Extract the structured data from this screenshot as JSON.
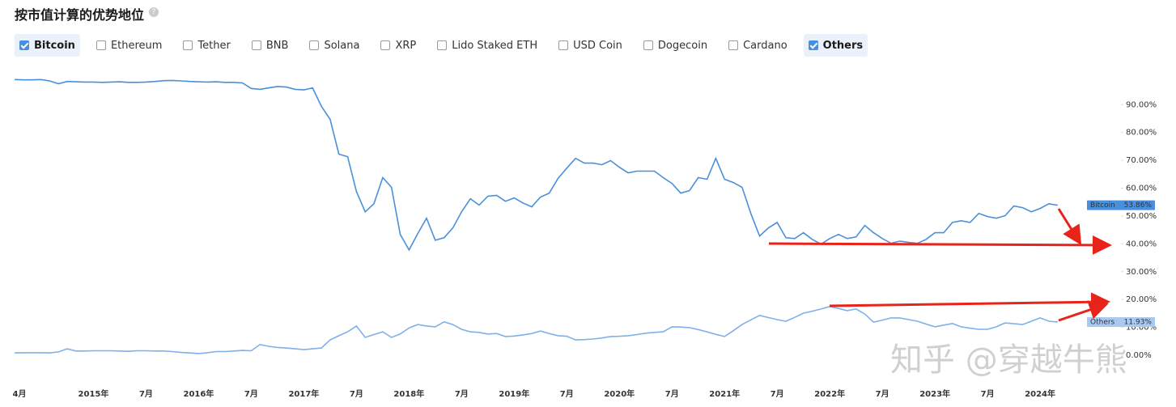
{
  "chart_data": {
    "type": "line",
    "title": "按市值计算的优势地位",
    "legend": [
      {
        "name": "Bitcoin",
        "checked": true
      },
      {
        "name": "Ethereum",
        "checked": false
      },
      {
        "name": "Tether",
        "checked": false
      },
      {
        "name": "BNB",
        "checked": false
      },
      {
        "name": "Solana",
        "checked": false
      },
      {
        "name": "XRP",
        "checked": false
      },
      {
        "name": "Lido Staked ETH",
        "checked": false
      },
      {
        "name": "USD Coin",
        "checked": false
      },
      {
        "name": "Dogecoin",
        "checked": false
      },
      {
        "name": "Cardano",
        "checked": false
      },
      {
        "name": "Others",
        "checked": true
      }
    ],
    "watermark": "知乎 @穿越牛熊",
    "categories": [
      "4月",
      null,
      null,
      null,
      null,
      null,
      null,
      null,
      null,
      "2015年",
      null,
      null,
      null,
      null,
      null,
      "7月",
      null,
      null,
      null,
      null,
      null,
      "2016年",
      null,
      null,
      null,
      null,
      null,
      "7月",
      null,
      null,
      null,
      null,
      null,
      "2017年",
      null,
      null,
      null,
      null,
      null,
      "7月",
      null,
      null,
      null,
      null,
      null,
      "2018年",
      null,
      null,
      null,
      null,
      null,
      "7月",
      null,
      null,
      null,
      null,
      null,
      "2019年",
      null,
      null,
      null,
      null,
      null,
      "7月",
      null,
      null,
      null,
      null,
      null,
      "2020年",
      null,
      null,
      null,
      null,
      null,
      "7月",
      null,
      null,
      null,
      null,
      null,
      "2021年",
      null,
      null,
      null,
      null,
      null,
      "7月",
      null,
      null,
      null,
      null,
      null,
      "2022年",
      null,
      null,
      null,
      null,
      null,
      "7月",
      null,
      null,
      null,
      null,
      null,
      "2023年",
      null,
      null,
      null,
      null,
      null,
      "7月",
      null,
      null,
      null,
      null,
      null,
      "2024年",
      null,
      null
    ],
    "series": [
      {
        "name": "Bitcoin",
        "color": "#4a90d9",
        "tag_color": "#4a8fdb",
        "tag_text": "#ffffff",
        "values": [
          99,
          98.9,
          98.9,
          99,
          98.5,
          97.5,
          98.3,
          98.2,
          98.1,
          98.1,
          98.0,
          98.1,
          98.2,
          98.0,
          98.0,
          98.1,
          98.3,
          98.6,
          98.7,
          98.5,
          98.3,
          98.2,
          98.1,
          98.2,
          98.0,
          98.0,
          97.8,
          95.8,
          95.5,
          96,
          96.5,
          96.3,
          95.5,
          95.3,
          96,
          89.4,
          84.7,
          72.2,
          71.3,
          58.8,
          51.5,
          54.4,
          63.8,
          60.3,
          43.4,
          37.8,
          43.7,
          49.2,
          41.3,
          42.2,
          45.7,
          51.5,
          56.2,
          53.9,
          57.1,
          57.4,
          55.3,
          56.5,
          54.7,
          53.3,
          56.8,
          58.2,
          63.5,
          67.2,
          70.7,
          69,
          69,
          68.4,
          69.9,
          67.5,
          65.5,
          66.1,
          66.1,
          66.1,
          63.8,
          61.7,
          58.2,
          59.1,
          63.8,
          63.2,
          70.7,
          63.2,
          62,
          60.3,
          50.9,
          42.8,
          45.7,
          47.7,
          42.2,
          41.9,
          44,
          41.6,
          39.9,
          41.9,
          43.4,
          41.9,
          42.5,
          46.6,
          44,
          41.9,
          40.2,
          41,
          40.5,
          40.2,
          41.6,
          44,
          44,
          47.7,
          48.3,
          47.7,
          50.9,
          49.8,
          49.2,
          50.1,
          53.6,
          53,
          51.5,
          52.7,
          54.4,
          53.86
        ],
        "value_labels": {
          "119": "53.86%"
        }
      },
      {
        "name": "Others",
        "color": "#7fb0ea",
        "tag_color": "#a9c9f2",
        "tag_text": "#1a2a44",
        "values": [
          0.8,
          0.9,
          0.9,
          0.9,
          0.8,
          1.2,
          2.3,
          1.5,
          1.5,
          1.6,
          1.6,
          1.6,
          1.5,
          1.4,
          1.6,
          1.6,
          1.5,
          1.5,
          1.3,
          1.0,
          0.8,
          0.6,
          0.9,
          1.3,
          1.3,
          1.5,
          1.7,
          1.6,
          3.8,
          3.2,
          2.8,
          2.6,
          2.3,
          2.0,
          2.3,
          2.6,
          5.5,
          7,
          8.4,
          10.5,
          6.4,
          7.4,
          8.4,
          6.4,
          7.6,
          9.8,
          11,
          10.5,
          10.2,
          12,
          11,
          9.3,
          8.4,
          8.2,
          7.6,
          7.8,
          6.7,
          6.9,
          7.3,
          7.8,
          8.7,
          7.8,
          7,
          6.8,
          5.5,
          5.6,
          5.8,
          6.2,
          6.7,
          6.8,
          7,
          7.4,
          7.9,
          8.2,
          8.4,
          10.2,
          10.1,
          9.9,
          9.2,
          8.4,
          7.5,
          6.7,
          8.8,
          11,
          12.7,
          14.3,
          13.5,
          12.8,
          12.2,
          13.6,
          15.1,
          15.8,
          16.6,
          17.5,
          16.8,
          16,
          16.6,
          14.8,
          11.9,
          12.6,
          13.4,
          13.4,
          12.8,
          12.2,
          11.2,
          10.2,
          10.8,
          11.4,
          10.2,
          9.7,
          9.3,
          9.3,
          10.2,
          11.6,
          11.3,
          11,
          12.2,
          13.4,
          12.2,
          11.93
        ],
        "value_labels": {
          "119": "11.93%"
        }
      }
    ],
    "ylim": [
      0,
      102
    ],
    "yticks": [
      {
        "value": 0,
        "label": "0.00%"
      },
      {
        "value": 10,
        "label": "10.00%"
      },
      {
        "value": 20,
        "label": "20.00%"
      },
      {
        "value": 30,
        "label": "30.00%"
      },
      {
        "value": 40,
        "label": "40.00%"
      },
      {
        "value": 50,
        "label": "50.00%"
      },
      {
        "value": 60,
        "label": "60.00%"
      },
      {
        "value": 70,
        "label": "70.00%"
      },
      {
        "value": 80,
        "label": "80.00%"
      },
      {
        "value": 90,
        "label": "90.00%"
      }
    ],
    "grid": false
  }
}
